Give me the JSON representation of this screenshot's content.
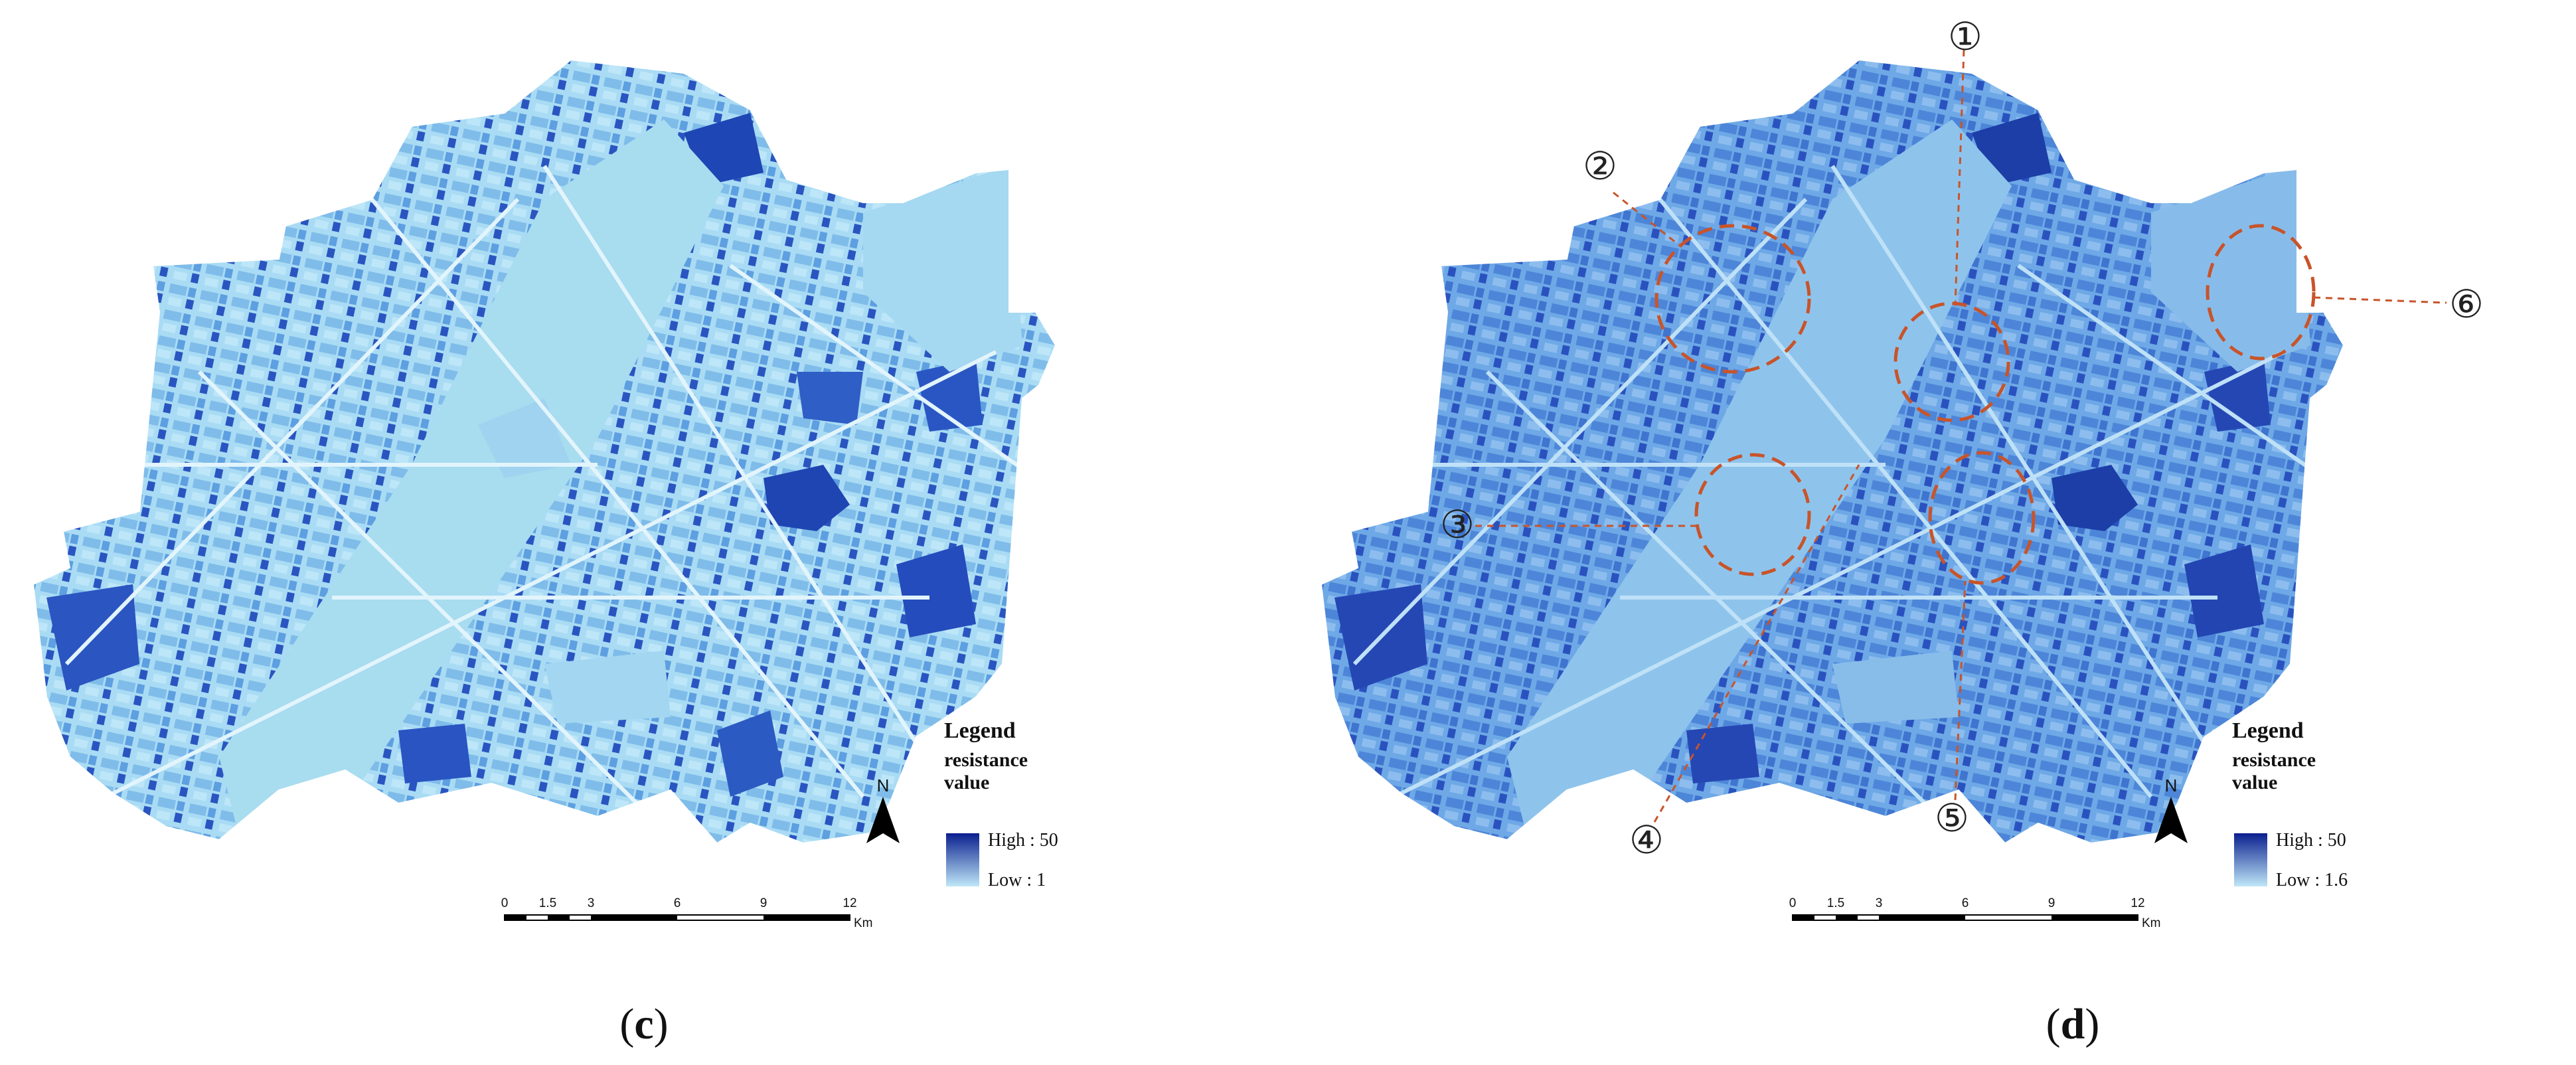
{
  "panels": [
    {
      "id": "c",
      "caption_open": "(",
      "caption_letter": "c",
      "caption_close": ")",
      "legend": {
        "title": "Legend",
        "subtitle": "resistance value",
        "high_label": "High : 50",
        "low_label": "Low : 1",
        "ramp_high_color": "#0a1f8f",
        "ramp_low_color": "#bfe7f7"
      },
      "scale_bar": {
        "ticks": [
          "0",
          "1.5",
          "3",
          "6",
          "9",
          "12"
        ],
        "unit": "Km"
      },
      "north_label": "N",
      "markers": []
    },
    {
      "id": "d",
      "caption_open": "(",
      "caption_letter": "d",
      "caption_close": ")",
      "legend": {
        "title": "Legend",
        "subtitle": "resistance value",
        "high_label": "High : 50",
        "low_label": "Low : 1.6",
        "ramp_high_color": "#0a1f8f",
        "ramp_low_color": "#bfe7f7"
      },
      "scale_bar": {
        "ticks": [
          "0",
          "1.5",
          "3",
          "6",
          "9",
          "12"
        ],
        "unit": "Km"
      },
      "north_label": "N",
      "markers": [
        "①",
        "②",
        "③",
        "④",
        "⑤",
        "⑥"
      ]
    }
  ],
  "colors": {
    "deep": "#1c3fa8",
    "mid": "#5aa0e0",
    "light": "#a6d9f3",
    "river": "#a8dcef",
    "road": "#dff2fb",
    "circle": "#c8542a"
  }
}
